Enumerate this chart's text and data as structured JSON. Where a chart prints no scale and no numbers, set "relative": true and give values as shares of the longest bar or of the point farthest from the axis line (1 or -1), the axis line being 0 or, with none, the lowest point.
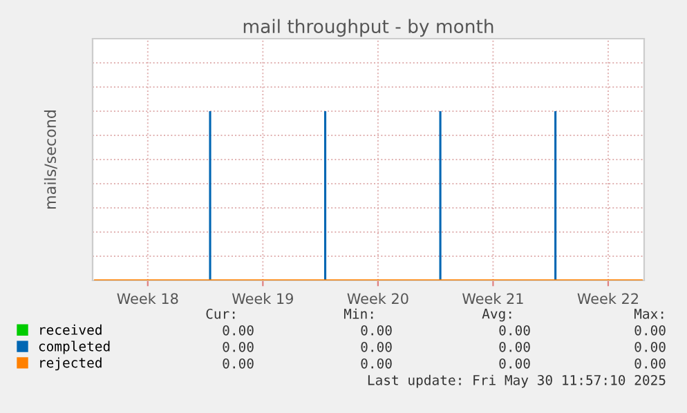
{
  "chart_data": {
    "type": "line",
    "title": "mail throughput - by month",
    "ylabel": "mails/second",
    "relative": true,
    "grid": true,
    "legend": "bottom left",
    "marker": "none",
    "line_style": "solid",
    "categories": [
      null,
      null,
      null,
      null,
      null,
      null,
      null,
      null,
      null,
      null,
      null,
      "Week 18",
      null,
      null,
      null,
      null,
      null,
      null,
      null,
      null,
      null,
      null,
      null,
      null,
      null,
      null,
      null,
      null,
      null,
      null,
      null,
      null,
      null,
      null,
      null,
      "Week 19",
      null,
      null,
      null,
      null,
      null,
      null,
      null,
      null,
      null,
      null,
      null,
      null,
      null,
      null,
      null,
      null,
      null,
      null,
      null,
      null,
      null,
      null,
      null,
      "Week 20",
      null,
      null,
      null,
      null,
      null,
      null,
      null,
      null,
      null,
      null,
      null,
      null,
      null,
      null,
      null,
      null,
      null,
      null,
      null,
      null,
      null,
      null,
      null,
      "Week 21",
      null,
      null,
      null,
      null,
      null,
      null,
      null,
      null,
      null,
      null,
      null,
      null,
      null,
      null,
      null,
      null,
      null,
      null,
      null,
      null,
      null,
      null,
      null,
      "Week 22",
      null,
      null,
      null,
      null,
      null,
      null,
      null
    ],
    "series": [
      {
        "name": "received",
        "color": "#00cc00",
        "values": [
          null,
          null,
          null,
          null,
          null,
          null,
          null,
          null,
          null,
          null,
          null,
          null,
          null,
          null,
          null,
          null,
          null,
          null,
          null,
          null,
          null,
          null,
          null,
          null,
          null,
          null,
          null,
          null,
          null,
          null,
          null,
          null,
          null,
          null,
          null,
          null,
          null,
          null,
          null,
          null,
          null,
          null,
          null,
          null,
          null,
          null,
          null,
          null,
          null,
          null,
          null,
          null,
          null,
          null,
          null,
          null,
          null,
          null,
          null,
          null,
          null,
          null,
          null,
          null,
          null,
          null,
          null,
          null,
          null,
          null,
          null,
          null,
          null,
          null,
          null,
          null,
          null,
          null,
          null,
          null,
          null,
          null,
          null,
          null,
          null,
          null,
          null,
          null,
          null,
          null,
          null,
          null,
          null,
          null,
          null,
          null,
          null,
          null,
          null,
          null,
          null,
          null,
          null,
          null,
          null,
          null,
          null,
          null,
          null,
          null,
          null,
          null,
          null,
          null,
          null
        ]
      },
      {
        "name": "completed",
        "color": "#0066b3",
        "type": "bar",
        "values": [
          null,
          null,
          null,
          null,
          null,
          null,
          null,
          null,
          null,
          null,
          null,
          null,
          null,
          null,
          null,
          null,
          null,
          null,
          null,
          null,
          null,
          null,
          null,
          null,
          1,
          null,
          null,
          null,
          null,
          null,
          null,
          null,
          null,
          null,
          null,
          null,
          null,
          null,
          null,
          null,
          null,
          null,
          null,
          null,
          null,
          null,
          null,
          null,
          1,
          null,
          null,
          null,
          null,
          null,
          null,
          null,
          null,
          null,
          null,
          null,
          null,
          null,
          null,
          null,
          null,
          null,
          null,
          null,
          null,
          null,
          null,
          null,
          1,
          null,
          null,
          null,
          null,
          null,
          null,
          null,
          null,
          null,
          null,
          null,
          null,
          null,
          null,
          null,
          null,
          null,
          null,
          null,
          null,
          null,
          null,
          null,
          1,
          null,
          null,
          null,
          null,
          null,
          null,
          null,
          null,
          null,
          null,
          null,
          null,
          null,
          null,
          null,
          null,
          null,
          null
        ]
      },
      {
        "name": "rejected",
        "color": "#ff8000",
        "values": [
          0,
          0,
          0,
          0,
          0,
          0,
          0,
          0,
          0,
          0,
          0,
          0,
          0,
          0,
          0,
          0,
          0,
          0,
          0,
          0,
          0,
          0,
          0,
          0,
          0,
          0,
          0,
          0,
          0,
          0,
          0,
          0,
          0,
          0,
          0,
          0,
          0,
          0,
          0,
          0,
          0,
          0,
          0,
          0,
          0,
          0,
          0,
          0,
          0,
          0,
          0,
          0,
          0,
          0,
          0,
          0,
          0,
          0,
          0,
          0,
          0,
          0,
          0,
          0,
          0,
          0,
          0,
          0,
          0,
          0,
          0,
          0,
          0,
          0,
          0,
          0,
          0,
          0,
          0,
          0,
          0,
          0,
          0,
          0,
          0,
          0,
          0,
          0,
          0,
          0,
          0,
          0,
          0,
          0,
          0,
          0,
          0,
          0,
          0,
          0,
          0,
          0,
          0,
          0,
          0,
          0,
          0,
          0,
          0,
          0,
          0,
          0,
          0,
          0,
          0
        ]
      }
    ],
    "annotations": [
      "Cur:",
      "Min:",
      "Avg:",
      "Max:",
      "0.00",
      "0.00",
      "0.00",
      "0.00",
      "0.00",
      "0.00",
      "0.00",
      "0.00",
      "0.00",
      "0.00",
      "0.00",
      "0.00",
      "Last update: Fri May 30 11:57:10 2025"
    ]
  }
}
